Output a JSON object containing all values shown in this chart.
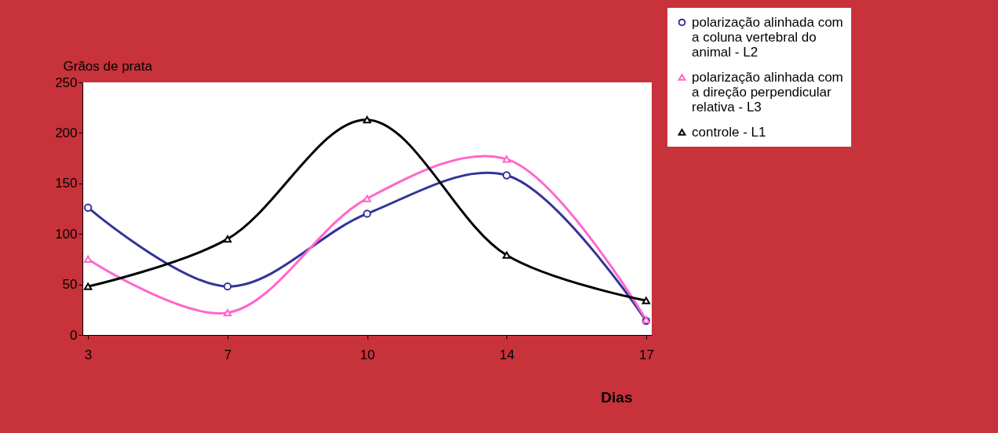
{
  "chart_data": {
    "type": "line",
    "categories": [
      "3",
      "7",
      "10",
      "14",
      "17"
    ],
    "xlabel": "Dias",
    "ylabel": "Grãos de prata",
    "ylim": [
      0,
      250
    ],
    "yticks": [
      0,
      50,
      100,
      150,
      200,
      250
    ],
    "grid": false,
    "legend": "right",
    "series": [
      {
        "name": "polarização alinhada com a coluna vertebral do animal - L2",
        "color": "#333399",
        "marker": "circle",
        "values": [
          126,
          48,
          120,
          158,
          14
        ]
      },
      {
        "name": "polarização alinhada com a direção perpendicular relativa - L3",
        "color": "#ff66cc",
        "marker": "triangle",
        "values": [
          75,
          22,
          135,
          174,
          15
        ]
      },
      {
        "name": "controle - L1",
        "color": "#000000",
        "marker": "triangle",
        "values": [
          48,
          95,
          213,
          79,
          34
        ]
      }
    ]
  }
}
